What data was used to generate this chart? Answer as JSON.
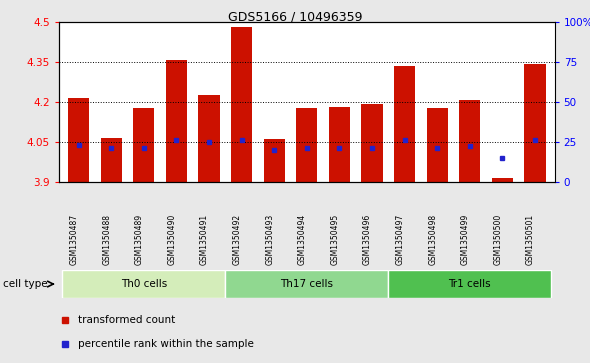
{
  "title": "GDS5166 / 10496359",
  "samples": [
    "GSM1350487",
    "GSM1350488",
    "GSM1350489",
    "GSM1350490",
    "GSM1350491",
    "GSM1350492",
    "GSM1350493",
    "GSM1350494",
    "GSM1350495",
    "GSM1350496",
    "GSM1350497",
    "GSM1350498",
    "GSM1350499",
    "GSM1350500",
    "GSM1350501"
  ],
  "transformed_count": [
    4.215,
    4.065,
    4.175,
    4.355,
    4.225,
    4.48,
    4.06,
    4.175,
    4.18,
    4.19,
    4.335,
    4.175,
    4.205,
    3.915,
    4.34
  ],
  "percentile_rank": [
    23,
    21,
    21,
    26,
    25,
    26,
    20,
    21,
    21,
    21,
    26,
    21,
    22,
    15,
    26
  ],
  "y_min": 3.9,
  "y_max": 4.5,
  "y_ticks": [
    3.9,
    4.05,
    4.2,
    4.35,
    4.5
  ],
  "y_tick_labels": [
    "3.9",
    "4.05",
    "4.2",
    "4.35",
    "4.5"
  ],
  "right_y_ticks": [
    0,
    25,
    50,
    75,
    100
  ],
  "right_y_labels": [
    "0",
    "25",
    "50",
    "75",
    "100%"
  ],
  "cell_groups": [
    {
      "label": "Th0 cells",
      "start": 0,
      "end": 4
    },
    {
      "label": "Th17 cells",
      "start": 5,
      "end": 9
    },
    {
      "label": "Tr1 cells",
      "start": 10,
      "end": 14
    }
  ],
  "group_colors": [
    "#d4edba",
    "#90d890",
    "#50c050"
  ],
  "bar_color": "#cc1100",
  "dot_color": "#2222cc",
  "bg_color": "#e8e8e8",
  "plot_bg_color": "#ffffff",
  "tick_bg_color": "#d0d0d0",
  "legend_red_label": "transformed count",
  "legend_blue_label": "percentile rank within the sample",
  "cell_type_label": "cell type"
}
